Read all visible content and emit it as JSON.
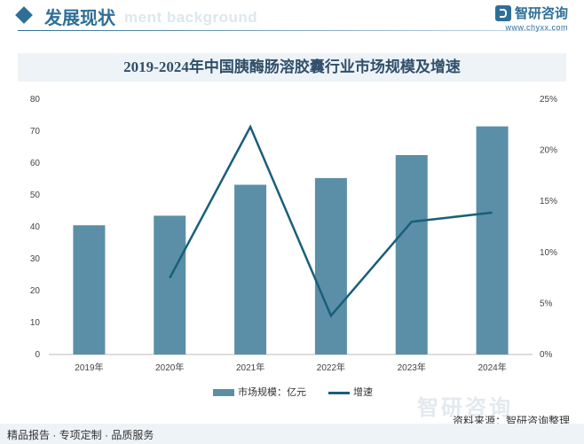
{
  "header": {
    "title": "发展现状",
    "ghost_text": "ment background",
    "brand_name": "智研咨询",
    "brand_url": "www.chyxx.com"
  },
  "chart_data": {
    "type": "bar",
    "title": "2019-2024年中国胰酶肠溶胶囊行业市场规模及增速",
    "categories": [
      "2019年",
      "2020年",
      "2021年",
      "2022年",
      "2023年",
      "2024年"
    ],
    "series": [
      {
        "name": "市场规模：亿元",
        "type": "bar",
        "axis": "left",
        "color": "#5b8fa8",
        "values": [
          40.5,
          43.5,
          53.2,
          55.3,
          62.5,
          71.5
        ]
      },
      {
        "name": "增速",
        "type": "line",
        "axis": "right",
        "color": "#1a5f7a",
        "values": [
          null,
          7.5,
          22.3,
          3.8,
          13.0,
          13.9
        ]
      }
    ],
    "y_left": {
      "min": 0,
      "max": 80,
      "ticks": [
        0,
        10,
        20,
        30,
        40,
        50,
        60,
        70,
        80
      ]
    },
    "y_right": {
      "min": 0,
      "max": 25,
      "ticks": [
        0,
        5,
        10,
        15,
        20,
        25
      ],
      "tick_labels": [
        "0%",
        "5%",
        "10%",
        "15%",
        "20%",
        "25%"
      ]
    },
    "grid": false,
    "legend": "bottom"
  },
  "watermark": "智研咨询",
  "source": "资料来源：智研咨询整理",
  "footer": "精品报告 · 专项定制 · 品质服务"
}
